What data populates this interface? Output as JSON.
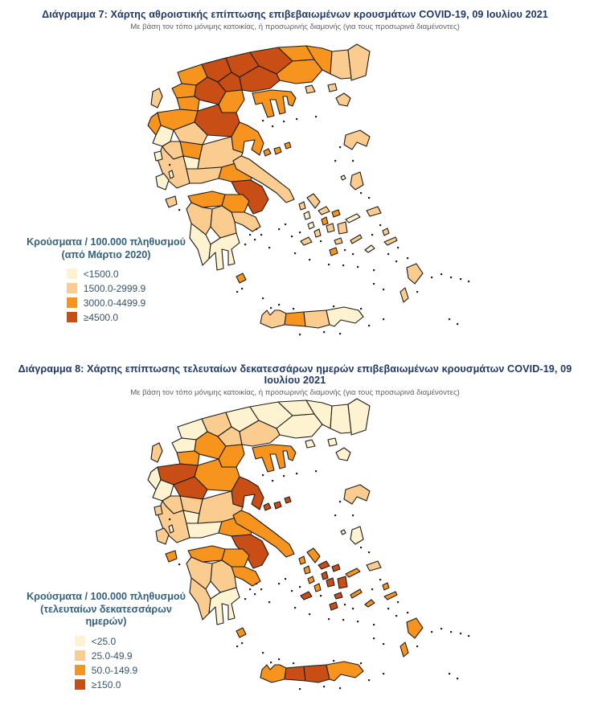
{
  "chart_data": [
    {
      "type": "heatmap",
      "subtype": "choropleth",
      "geography": "Greece regional units",
      "title": "Διάγραμμα 7: Χάρτης αθροιστικής επίπτωσης επιβεβαιωμένων κρουσμάτων COVID-19, 09 Ιουλίου 2021",
      "subtitle": "Με βάση τον τόπο μόνιμης κατοικίας, ή προσωρινής διαμονής (για τους προσωρινά διαμένοντες)",
      "legend_title_line1": "Κρούσματα / 100.000 πληθυσμού",
      "legend_title_line2": "(από Μάρτιο 2020)",
      "bins": [
        {
          "label": "<1500.0",
          "color": "#fdf3d0"
        },
        {
          "label": "1500.0-2999.9",
          "color": "#facc8f"
        },
        {
          "label": "3000.0-4499.9",
          "color": "#f7941e"
        },
        {
          "label": "≥4500.0",
          "color": "#c94e16"
        }
      ],
      "border_color": "#1b1b1b",
      "regions": {
        "florina": 2,
        "kastoria": 2,
        "pella": 3,
        "kilkis": 3,
        "serres": 3,
        "drama": 2,
        "kavala": 2,
        "xanthi": 2,
        "rodopi": 1,
        "evros": 1,
        "kozani": 3,
        "imathia": 3,
        "thessaloniki": 3,
        "chalkidiki": 2,
        "pieria": 2,
        "grevena": 2,
        "ioannina": 2,
        "thesprotia": 2,
        "larissa": 3,
        "trikala": 1,
        "karditsa": 2,
        "magnisia": 2,
        "preveza": 0,
        "arta": 1,
        "aitoloakarnania": 1,
        "evrytania": 0,
        "fthiotida": 1,
        "fokida": 1,
        "viotia": 2,
        "attiki": 3,
        "evia": 1,
        "achaia": 2,
        "korinthia": 2,
        "argolida": 1,
        "arkadia": 1,
        "ilia": 1,
        "messinia": 0,
        "lakonia": 0,
        "kerkyra": 1,
        "lefkada": 0,
        "kefalonia": 0,
        "ithaki": 0,
        "zakynthos": 1,
        "kythira": 2,
        "chania": 1,
        "rethymno": 2,
        "heraklio": 1,
        "lasithi": 0,
        "lemnos": 1,
        "samothraki": 1,
        "thasos": 1,
        "lesvos": 1,
        "chios": 1,
        "psara": 0,
        "samos": 1,
        "ikaria": 0,
        "kea": 1,
        "kythnos": 0,
        "serifos": 0,
        "sifnos": 1,
        "milos": 1,
        "andros": 1,
        "tinos": 1,
        "mykonos": 2,
        "syros": 2,
        "paros": 1,
        "naxos": 1,
        "ios": 1,
        "santorini": 2,
        "amorgos": 1,
        "astypalea": 0,
        "kalymnos": 1,
        "kos": 1,
        "rhodes": 1,
        "karpathos": 1
      }
    },
    {
      "type": "heatmap",
      "subtype": "choropleth",
      "geography": "Greece regional units",
      "title": "Διάγραμμα 8: Χάρτης επίπτωσης τελευταίων δεκατεσσάρων ημερών επιβεβαιωμένων κρουσμάτων COVID-19, 09 Ιουλίου 2021",
      "subtitle": "Με βάση τον τόπο μόνιμης κατοικίας, ή προσωρινής διαμονής (για τους προσωρινά διαμένοντες)",
      "legend_title_line1": "Κρούσματα / 100.000 πληθυσμού",
      "legend_title_line2": "(τελευταίων δεκατεσσάρων ημερών)",
      "bins": [
        {
          "label": "<25.0",
          "color": "#fdf3d0"
        },
        {
          "label": "25.0-49.9",
          "color": "#facc8f"
        },
        {
          "label": "50.0-149.9",
          "color": "#f7941e"
        },
        {
          "label": "≥150.0",
          "color": "#c94e16"
        }
      ],
      "border_color": "#1b1b1b",
      "regions": {
        "florina": 0,
        "kastoria": 0,
        "pella": 1,
        "kilkis": 0,
        "serres": 0,
        "drama": 0,
        "kavala": 0,
        "xanthi": 0,
        "rodopi": 0,
        "evros": 0,
        "kozani": 2,
        "imathia": 1,
        "thessaloniki": 1,
        "chalkidiki": 2,
        "pieria": 2,
        "grevena": 2,
        "ioannina": 3,
        "thesprotia": 0,
        "larissa": 2,
        "trikala": 3,
        "karditsa": 1,
        "magnisia": 3,
        "preveza": 0,
        "arta": 1,
        "aitoloakarnania": 1,
        "evrytania": 0,
        "fthiotida": 1,
        "fokida": 0,
        "viotia": 2,
        "attiki": 3,
        "evia": 2,
        "achaia": 2,
        "korinthia": 2,
        "argolida": 2,
        "arkadia": 1,
        "ilia": 1,
        "messinia": 1,
        "lakonia": 0,
        "kerkyra": 1,
        "lefkada": 1,
        "kefalonia": 1,
        "ithaki": 0,
        "zakynthos": 2,
        "kythira": 2,
        "chania": 2,
        "rethymno": 3,
        "heraklio": 3,
        "lasithi": 2,
        "lemnos": 0,
        "samothraki": 0,
        "thasos": 0,
        "lesvos": 1,
        "chios": 0,
        "psara": 0,
        "samos": 1,
        "ikaria": 2,
        "kea": 2,
        "kythnos": 2,
        "serifos": 2,
        "sifnos": 2,
        "milos": 3,
        "andros": 2,
        "tinos": 3,
        "mykonos": 3,
        "syros": 3,
        "paros": 3,
        "naxos": 3,
        "ios": 3,
        "santorini": 3,
        "amorgos": 2,
        "astypalea": 2,
        "kalymnos": 2,
        "kos": 2,
        "rhodes": 2,
        "karpathos": 2
      }
    }
  ]
}
